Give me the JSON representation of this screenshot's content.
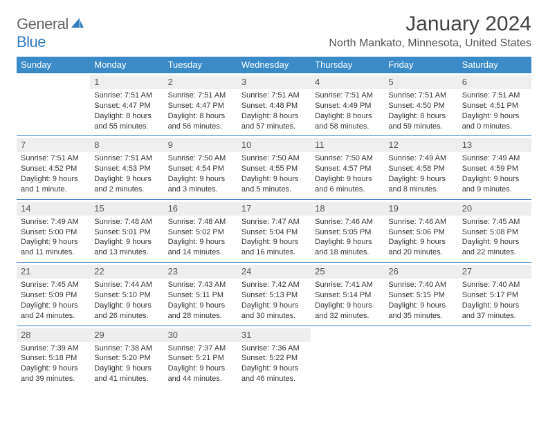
{
  "logo": {
    "general": "General",
    "blue": "Blue"
  },
  "title": "January 2024",
  "location": "North Mankato, Minnesota, United States",
  "colors": {
    "header_bg": "#3b8bc8",
    "header_text": "#ffffff",
    "border": "#2f7bbf",
    "daynum_bg": "#eeeeee",
    "text": "#333333",
    "logo_gray": "#666666",
    "logo_blue": "#2f7bbf"
  },
  "day_headers": [
    "Sunday",
    "Monday",
    "Tuesday",
    "Wednesday",
    "Thursday",
    "Friday",
    "Saturday"
  ],
  "weeks": [
    [
      null,
      {
        "n": "1",
        "l1": "Sunrise: 7:51 AM",
        "l2": "Sunset: 4:47 PM",
        "l3": "Daylight: 8 hours",
        "l4": "and 55 minutes."
      },
      {
        "n": "2",
        "l1": "Sunrise: 7:51 AM",
        "l2": "Sunset: 4:47 PM",
        "l3": "Daylight: 8 hours",
        "l4": "and 56 minutes."
      },
      {
        "n": "3",
        "l1": "Sunrise: 7:51 AM",
        "l2": "Sunset: 4:48 PM",
        "l3": "Daylight: 8 hours",
        "l4": "and 57 minutes."
      },
      {
        "n": "4",
        "l1": "Sunrise: 7:51 AM",
        "l2": "Sunset: 4:49 PM",
        "l3": "Daylight: 8 hours",
        "l4": "and 58 minutes."
      },
      {
        "n": "5",
        "l1": "Sunrise: 7:51 AM",
        "l2": "Sunset: 4:50 PM",
        "l3": "Daylight: 8 hours",
        "l4": "and 59 minutes."
      },
      {
        "n": "6",
        "l1": "Sunrise: 7:51 AM",
        "l2": "Sunset: 4:51 PM",
        "l3": "Daylight: 9 hours",
        "l4": "and 0 minutes."
      }
    ],
    [
      {
        "n": "7",
        "l1": "Sunrise: 7:51 AM",
        "l2": "Sunset: 4:52 PM",
        "l3": "Daylight: 9 hours",
        "l4": "and 1 minute."
      },
      {
        "n": "8",
        "l1": "Sunrise: 7:51 AM",
        "l2": "Sunset: 4:53 PM",
        "l3": "Daylight: 9 hours",
        "l4": "and 2 minutes."
      },
      {
        "n": "9",
        "l1": "Sunrise: 7:50 AM",
        "l2": "Sunset: 4:54 PM",
        "l3": "Daylight: 9 hours",
        "l4": "and 3 minutes."
      },
      {
        "n": "10",
        "l1": "Sunrise: 7:50 AM",
        "l2": "Sunset: 4:55 PM",
        "l3": "Daylight: 9 hours",
        "l4": "and 5 minutes."
      },
      {
        "n": "11",
        "l1": "Sunrise: 7:50 AM",
        "l2": "Sunset: 4:57 PM",
        "l3": "Daylight: 9 hours",
        "l4": "and 6 minutes."
      },
      {
        "n": "12",
        "l1": "Sunrise: 7:49 AM",
        "l2": "Sunset: 4:58 PM",
        "l3": "Daylight: 9 hours",
        "l4": "and 8 minutes."
      },
      {
        "n": "13",
        "l1": "Sunrise: 7:49 AM",
        "l2": "Sunset: 4:59 PM",
        "l3": "Daylight: 9 hours",
        "l4": "and 9 minutes."
      }
    ],
    [
      {
        "n": "14",
        "l1": "Sunrise: 7:49 AM",
        "l2": "Sunset: 5:00 PM",
        "l3": "Daylight: 9 hours",
        "l4": "and 11 minutes."
      },
      {
        "n": "15",
        "l1": "Sunrise: 7:48 AM",
        "l2": "Sunset: 5:01 PM",
        "l3": "Daylight: 9 hours",
        "l4": "and 13 minutes."
      },
      {
        "n": "16",
        "l1": "Sunrise: 7:48 AM",
        "l2": "Sunset: 5:02 PM",
        "l3": "Daylight: 9 hours",
        "l4": "and 14 minutes."
      },
      {
        "n": "17",
        "l1": "Sunrise: 7:47 AM",
        "l2": "Sunset: 5:04 PM",
        "l3": "Daylight: 9 hours",
        "l4": "and 16 minutes."
      },
      {
        "n": "18",
        "l1": "Sunrise: 7:46 AM",
        "l2": "Sunset: 5:05 PM",
        "l3": "Daylight: 9 hours",
        "l4": "and 18 minutes."
      },
      {
        "n": "19",
        "l1": "Sunrise: 7:46 AM",
        "l2": "Sunset: 5:06 PM",
        "l3": "Daylight: 9 hours",
        "l4": "and 20 minutes."
      },
      {
        "n": "20",
        "l1": "Sunrise: 7:45 AM",
        "l2": "Sunset: 5:08 PM",
        "l3": "Daylight: 9 hours",
        "l4": "and 22 minutes."
      }
    ],
    [
      {
        "n": "21",
        "l1": "Sunrise: 7:45 AM",
        "l2": "Sunset: 5:09 PM",
        "l3": "Daylight: 9 hours",
        "l4": "and 24 minutes."
      },
      {
        "n": "22",
        "l1": "Sunrise: 7:44 AM",
        "l2": "Sunset: 5:10 PM",
        "l3": "Daylight: 9 hours",
        "l4": "and 26 minutes."
      },
      {
        "n": "23",
        "l1": "Sunrise: 7:43 AM",
        "l2": "Sunset: 5:11 PM",
        "l3": "Daylight: 9 hours",
        "l4": "and 28 minutes."
      },
      {
        "n": "24",
        "l1": "Sunrise: 7:42 AM",
        "l2": "Sunset: 5:13 PM",
        "l3": "Daylight: 9 hours",
        "l4": "and 30 minutes."
      },
      {
        "n": "25",
        "l1": "Sunrise: 7:41 AM",
        "l2": "Sunset: 5:14 PM",
        "l3": "Daylight: 9 hours",
        "l4": "and 32 minutes."
      },
      {
        "n": "26",
        "l1": "Sunrise: 7:40 AM",
        "l2": "Sunset: 5:15 PM",
        "l3": "Daylight: 9 hours",
        "l4": "and 35 minutes."
      },
      {
        "n": "27",
        "l1": "Sunrise: 7:40 AM",
        "l2": "Sunset: 5:17 PM",
        "l3": "Daylight: 9 hours",
        "l4": "and 37 minutes."
      }
    ],
    [
      {
        "n": "28",
        "l1": "Sunrise: 7:39 AM",
        "l2": "Sunset: 5:18 PM",
        "l3": "Daylight: 9 hours",
        "l4": "and 39 minutes."
      },
      {
        "n": "29",
        "l1": "Sunrise: 7:38 AM",
        "l2": "Sunset: 5:20 PM",
        "l3": "Daylight: 9 hours",
        "l4": "and 41 minutes."
      },
      {
        "n": "30",
        "l1": "Sunrise: 7:37 AM",
        "l2": "Sunset: 5:21 PM",
        "l3": "Daylight: 9 hours",
        "l4": "and 44 minutes."
      },
      {
        "n": "31",
        "l1": "Sunrise: 7:36 AM",
        "l2": "Sunset: 5:22 PM",
        "l3": "Daylight: 9 hours",
        "l4": "and 46 minutes."
      },
      null,
      null,
      null
    ]
  ]
}
